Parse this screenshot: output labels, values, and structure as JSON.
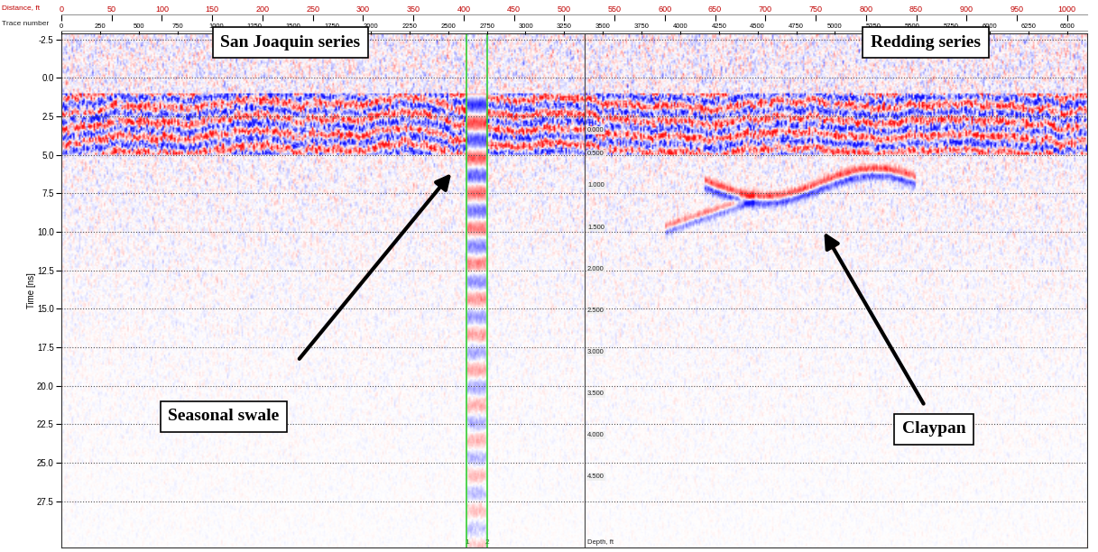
{
  "chart_data": {
    "type": "radargram",
    "x_label": "Distance, ft",
    "x2_label": "Trace number",
    "y_label": "Time [ns]",
    "xlim": [
      0,
      1020
    ],
    "xticks": [
      0,
      50,
      100,
      150,
      200,
      250,
      300,
      350,
      400,
      450,
      500,
      550,
      600,
      650,
      700,
      750,
      800,
      850,
      900,
      950,
      1000
    ],
    "x2lim": [
      0,
      6630
    ],
    "x2ticks": [
      0,
      250,
      500,
      750,
      1000,
      1250,
      1500,
      1750,
      2000,
      2250,
      2500,
      2750,
      3000,
      3250,
      3500,
      3750,
      4000,
      4250,
      4500,
      4750,
      5000,
      5250,
      5500,
      5750,
      6000,
      6250,
      6500
    ],
    "ylim": [
      30.5,
      -2.9
    ],
    "yticks": [
      -2.5,
      0.0,
      2.5,
      5.0,
      7.5,
      10.0,
      12.5,
      15.0,
      17.5,
      20.0,
      22.5,
      25.0,
      27.5
    ],
    "grid": true,
    "depth_axis": {
      "label": "Depth, ft",
      "x": 520,
      "ticks": [
        {
          "value": 3.4,
          "label": "0.000"
        },
        {
          "value": 4.9,
          "label": "0.500"
        },
        {
          "value": 7.0,
          "label": "1.000"
        },
        {
          "value": 9.7,
          "label": "1.500"
        },
        {
          "value": 12.4,
          "label": "2.000"
        },
        {
          "value": 15.1,
          "label": "2.500"
        },
        {
          "value": 17.8,
          "label": "3.000"
        },
        {
          "value": 20.5,
          "label": "3.500"
        },
        {
          "value": 23.2,
          "label": "4.000"
        },
        {
          "value": 25.9,
          "label": "4.500"
        }
      ]
    },
    "markers": [
      {
        "label": "1",
        "trace": 2620,
        "color": "#33cc33"
      },
      {
        "label": "2",
        "trace": 2750,
        "color": "#33cc33"
      }
    ],
    "annotations": [
      "San Joaquin series",
      "Redding series",
      "Seasonal swale",
      "Claypan"
    ]
  }
}
